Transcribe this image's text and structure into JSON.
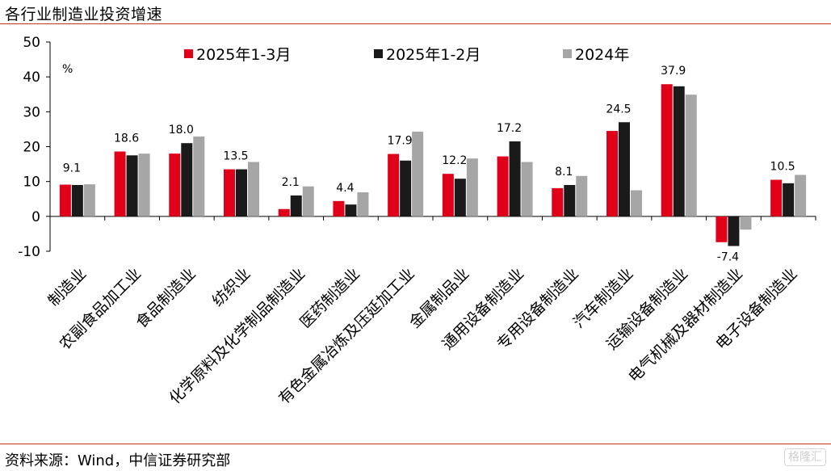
{
  "header": {
    "title": "各行业制造业投资增速"
  },
  "footer": {
    "source": "资料来源：Wind，中信证券研究部",
    "watermark": "格隆汇"
  },
  "chart_data": {
    "type": "bar",
    "unit_label": "%",
    "ylim": [
      -10,
      50
    ],
    "yticks": [
      -10,
      0,
      10,
      20,
      30,
      40,
      50
    ],
    "categories": [
      "制造业",
      "农副食品加工业",
      "食品制造业",
      "纺织业",
      "化学原料及化学制品制造业",
      "医药制造业",
      "有色金属冶炼及压延加工业",
      "金属制品业",
      "通用设备制造业",
      "专用设备制造业",
      "汽车制造业",
      "运输设备制造业",
      "电气机械及器材制造业",
      "电子设备制造业"
    ],
    "series": [
      {
        "name": "2025年1-3月",
        "color": "#e00019",
        "values": [
          9.1,
          18.6,
          18.0,
          13.5,
          2.1,
          4.4,
          17.9,
          12.2,
          17.2,
          8.1,
          24.5,
          37.9,
          -7.4,
          10.5
        ]
      },
      {
        "name": "2025年1-2月",
        "color": "#1a1a1a",
        "values": [
          9.0,
          17.5,
          21.0,
          13.5,
          6.0,
          3.4,
          16.0,
          10.8,
          21.5,
          9.0,
          27.0,
          37.3,
          -8.5,
          9.5
        ]
      },
      {
        "name": "2024年",
        "color": "#a6a6a6",
        "values": [
          9.2,
          18.0,
          22.9,
          15.6,
          8.6,
          6.9,
          24.3,
          16.6,
          15.6,
          11.6,
          7.5,
          34.9,
          -3.8,
          11.9
        ]
      }
    ],
    "data_labels": [
      "9.1",
      "18.6",
      "18.0",
      "13.5",
      "2.1",
      "4.4",
      "17.9",
      "12.2",
      "17.2",
      "8.1",
      "24.5",
      "37.9",
      "-7.4",
      "10.5"
    ],
    "legend": "top",
    "grid": false
  }
}
